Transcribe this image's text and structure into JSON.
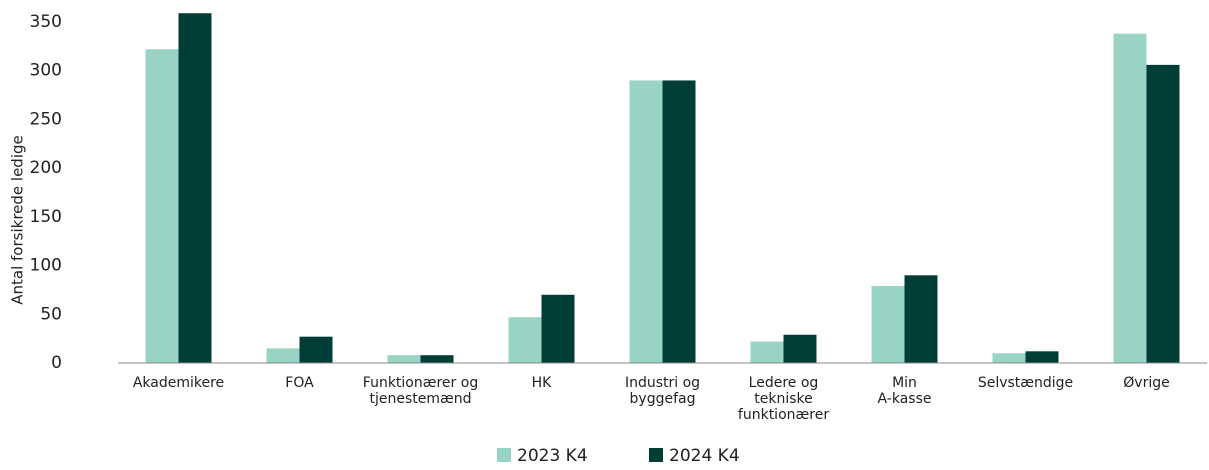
{
  "chart_data": {
    "type": "bar",
    "y_label": "Antal forsikrede ledige",
    "categories": [
      [
        "Akademikere"
      ],
      [
        "FOA"
      ],
      [
        "Funktionærer og",
        "tjenestemænd"
      ],
      [
        "HK"
      ],
      [
        "Industri og",
        "byggefag"
      ],
      [
        "Ledere og",
        "tekniske",
        "funktionærer"
      ],
      [
        "Min",
        "A-kasse"
      ],
      [
        "Selvstændige"
      ],
      [
        "Øvrige"
      ]
    ],
    "series": [
      {
        "name": "2023 K4",
        "color": "#98d3c3",
        "values": [
          322,
          15,
          8,
          47,
          290,
          22,
          79,
          10,
          338
        ]
      },
      {
        "name": "2024 K4",
        "color": "#003d36",
        "values": [
          359,
          27,
          8,
          70,
          290,
          29,
          90,
          12,
          306
        ]
      }
    ],
    "ylim": [
      0,
      350
    ],
    "yticks": [
      0,
      50,
      100,
      150,
      200,
      250,
      300,
      350
    ],
    "grid": false,
    "legend": "bottom"
  }
}
